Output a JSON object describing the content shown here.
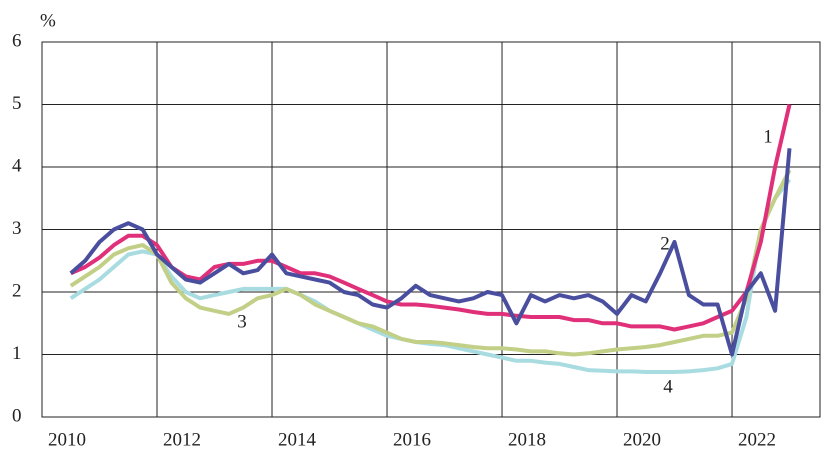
{
  "chart_data": {
    "type": "line",
    "y_unit": "%",
    "xlim": [
      2010,
      2023.53
    ],
    "xticks": [
      2010,
      2012,
      2014,
      2016,
      2018,
      2020,
      2022
    ],
    "ylim": [
      0,
      6
    ],
    "yticks": [
      0,
      1,
      2,
      3,
      4,
      5,
      6
    ],
    "grid": true,
    "x": [
      2010.5,
      2010.75,
      2011,
      2011.25,
      2011.5,
      2011.75,
      2012,
      2012.25,
      2012.5,
      2012.75,
      2013,
      2013.25,
      2013.5,
      2013.75,
      2014,
      2014.25,
      2014.5,
      2014.75,
      2015,
      2015.25,
      2015.5,
      2015.75,
      2016,
      2016.25,
      2016.5,
      2016.75,
      2017,
      2017.25,
      2017.5,
      2017.75,
      2018,
      2018.25,
      2018.5,
      2018.75,
      2019,
      2019.25,
      2019.5,
      2019.75,
      2020,
      2020.25,
      2020.5,
      2020.75,
      2021,
      2021.25,
      2021.5,
      2021.75,
      2022,
      2022.25,
      2022.5,
      2022.75,
      2023
    ],
    "series": [
      {
        "name": "1",
        "color": "#e0307a",
        "values": [
          2.3,
          2.4,
          2.55,
          2.75,
          2.9,
          2.9,
          2.75,
          2.4,
          2.25,
          2.2,
          2.4,
          2.45,
          2.45,
          2.5,
          2.5,
          2.4,
          2.3,
          2.3,
          2.25,
          2.15,
          2.05,
          1.95,
          1.85,
          1.8,
          1.8,
          1.78,
          1.75,
          1.72,
          1.68,
          1.65,
          1.65,
          1.62,
          1.6,
          1.6,
          1.6,
          1.55,
          1.55,
          1.5,
          1.5,
          1.45,
          1.45,
          1.45,
          1.4,
          1.45,
          1.5,
          1.6,
          1.7,
          2.0,
          2.8,
          4.0,
          5.0
        ]
      },
      {
        "name": "2",
        "color": "#4a4e9e",
        "values": [
          2.3,
          2.5,
          2.8,
          3.0,
          3.1,
          3.0,
          2.6,
          2.4,
          2.2,
          2.15,
          2.3,
          2.45,
          2.3,
          2.35,
          2.6,
          2.3,
          2.25,
          2.2,
          2.15,
          2.0,
          1.95,
          1.8,
          1.75,
          1.9,
          2.1,
          1.95,
          1.9,
          1.85,
          1.9,
          2.0,
          1.95,
          1.5,
          1.95,
          1.85,
          1.95,
          1.9,
          1.95,
          1.85,
          1.65,
          1.95,
          1.85,
          2.3,
          2.8,
          1.95,
          1.8,
          1.8,
          1.0,
          2.0,
          2.3,
          1.7,
          4.3
        ]
      },
      {
        "name": "3",
        "color": "#c2cf86",
        "values": [
          2.1,
          2.25,
          2.4,
          2.6,
          2.7,
          2.75,
          2.6,
          2.15,
          1.9,
          1.75,
          1.7,
          1.65,
          1.75,
          1.9,
          1.95,
          2.05,
          1.95,
          1.8,
          1.7,
          1.6,
          1.5,
          1.45,
          1.35,
          1.25,
          1.2,
          1.2,
          1.18,
          1.15,
          1.12,
          1.1,
          1.1,
          1.08,
          1.05,
          1.05,
          1.02,
          1.0,
          1.02,
          1.05,
          1.08,
          1.1,
          1.12,
          1.15,
          1.2,
          1.25,
          1.3,
          1.3,
          1.35,
          1.9,
          3.0,
          3.5,
          3.95
        ]
      },
      {
        "name": "4",
        "color": "#a8dce0",
        "values": [
          1.9,
          2.05,
          2.2,
          2.4,
          2.6,
          2.65,
          2.6,
          2.25,
          2.0,
          1.9,
          1.95,
          2.0,
          2.05,
          2.05,
          2.05,
          2.05,
          1.95,
          1.85,
          1.7,
          1.6,
          1.5,
          1.4,
          1.3,
          1.25,
          1.2,
          1.17,
          1.15,
          1.1,
          1.05,
          1.0,
          0.95,
          0.9,
          0.9,
          0.87,
          0.85,
          0.8,
          0.75,
          0.74,
          0.73,
          0.73,
          0.72,
          0.72,
          0.72,
          0.73,
          0.75,
          0.78,
          0.85,
          1.6,
          3.0,
          3.5,
          3.8
        ]
      }
    ]
  }
}
